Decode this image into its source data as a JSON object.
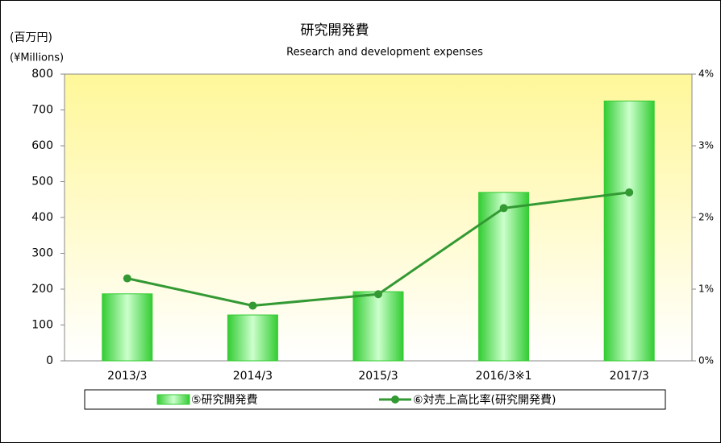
{
  "chart_data": {
    "type": "bar",
    "title": "研究開発費",
    "subtitle": "Research and development expenses",
    "y_label": "(百万円)",
    "y_label_en": "(¥Millions)",
    "categories": [
      "2013/3",
      "2014/3",
      "2015/3",
      "2016/3※1",
      "2017/3"
    ],
    "series": [
      {
        "name": "⑤研究開発費",
        "type": "bar",
        "color": "#33cc33",
        "values": [
          187,
          128,
          193,
          470,
          725
        ]
      },
      {
        "name": "⑥対売上高比率(研究開発費)",
        "type": "line",
        "axis": "y2",
        "color": "#339933",
        "values": [
          1.15,
          0.77,
          0.93,
          2.13,
          2.35
        ]
      }
    ],
    "ylim": [
      0,
      800
    ],
    "yticks": [
      0,
      100,
      200,
      300,
      400,
      500,
      600,
      700,
      800
    ],
    "y2lim": [
      0,
      4
    ],
    "y2ticks": [
      {
        "value": 0,
        "label": "0%"
      },
      {
        "value": 1,
        "label": "1%"
      },
      {
        "value": 2,
        "label": "2%"
      },
      {
        "value": 3,
        "label": "3%"
      },
      {
        "value": 4,
        "label": "4%"
      }
    ],
    "legend": "bottom"
  }
}
